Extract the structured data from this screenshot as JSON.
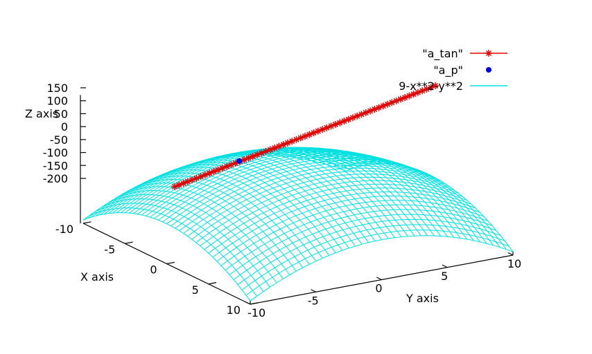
{
  "chart_data": {
    "type": "surface3d",
    "title": "",
    "xlabel": "X axis",
    "ylabel": "Y axis",
    "zlabel": "Z axis",
    "xlim": [
      -10,
      10
    ],
    "ylim": [
      -10,
      10
    ],
    "zlim": [
      -200,
      150
    ],
    "x_ticks": [
      "-10",
      "-5",
      "0",
      "5",
      "10"
    ],
    "y_ticks": [
      "-10",
      "-5",
      "0",
      "5",
      "10"
    ],
    "z_ticks": [
      "150",
      "100",
      "50",
      "0",
      "-50",
      "-100",
      "-150",
      "-200"
    ],
    "legend_position": "top-right",
    "series": [
      {
        "name": "\"a_tan\"",
        "kind": "lines+points",
        "marker": "asterisk",
        "color": "#e00000",
        "description": "tangent line",
        "x_range": [
          -10,
          10
        ],
        "y_range": [
          -10,
          10
        ]
      },
      {
        "name": "\"a_p\"",
        "kind": "point",
        "marker": "filled-circle",
        "color": "#0000dd",
        "x": -5,
        "y": -2.5
      },
      {
        "name": "9-x**2-y**2",
        "kind": "surface-mesh",
        "color": "#00e0e0",
        "grid": 40
      }
    ]
  }
}
